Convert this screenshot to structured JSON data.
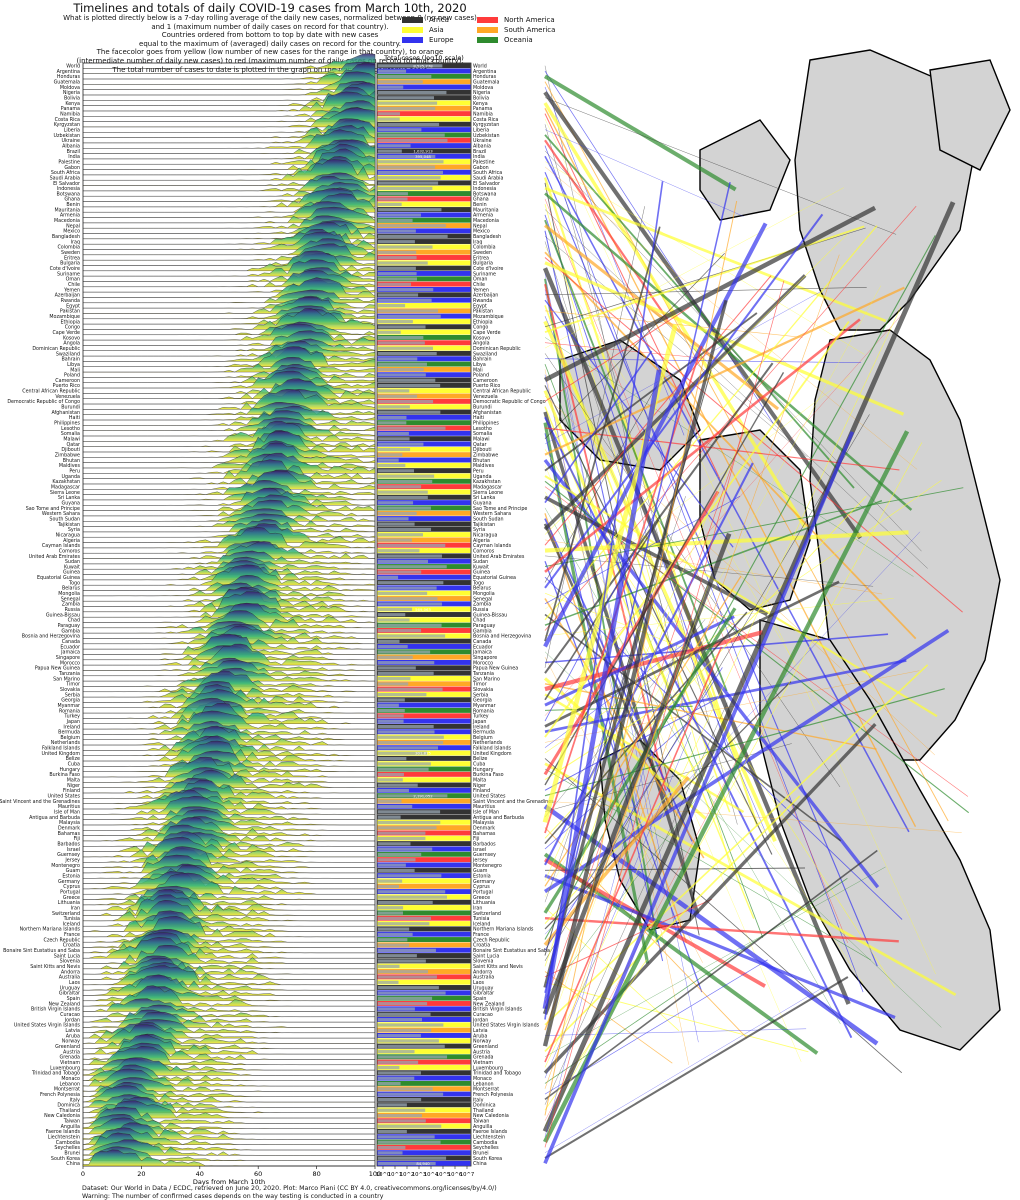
{
  "title": "Timelines and totals of daily COVID-19 cases from March 10th, 2020",
  "subtitle_lines": [
    "What is plotted directly below is a 7-day rolling average of the daily new cases, normalized between 0 (no new cases)",
    "and 1 (maximum number of daily cases on record for that country).",
    "Countries ordered from bottom to top by date with new cases",
    "equal to the maximum of (averaged) daily cases on record for the country.",
    "The facecolor goes from yellow (low number of new cases for the range in that country), to orange",
    "(intermediate number of daily new cases) to red (maximum number of daily cases on record for that country).",
    "The total number of cases to date is plotted in the graph on the right, in logarithmic scale"
  ],
  "legend": [
    {
      "label": "Africa",
      "color": "#333333"
    },
    {
      "label": "North America",
      "color": "#ff3b3b"
    },
    {
      "label": "Asia",
      "color": "#ffff33"
    },
    {
      "label": "South America",
      "color": "#ffa826"
    },
    {
      "label": "Europe",
      "color": "#3333ee"
    },
    {
      "label": "Oceania",
      "color": "#2e8b2e"
    }
  ],
  "footer": [
    "Dataset: Our World in Data / ECDC, retrieved on June 20, 2020. Plot: Marco Piani (CC BY 4.0, creativecommons.org/licenses/by/4.0/)",
    "Warning: The number of confirmed cases depends on the way testing is conducted in a country"
  ],
  "chart_data": [
    {
      "type": "area",
      "xlabel": "Days from March 10th",
      "xlim": [
        0,
        100
      ],
      "x_ticks": [
        0,
        20,
        40,
        60,
        80,
        100
      ],
      "categories": [
        "World",
        "Argentina",
        "Honduras",
        "Guatemala",
        "Moldova",
        "Nigeria",
        "Bolivia",
        "Kenya",
        "Panama",
        "Namibia",
        "Costa Rica",
        "Kyrgyzstan",
        "Liberia",
        "Uzbekistan",
        "Ukraine",
        "Albania",
        "Brazil",
        "India",
        "Palestine",
        "Gabon",
        "South Africa",
        "Saudi Arabia",
        "El Salvador",
        "Indonesia",
        "Botswana",
        "Ghana",
        "Benin",
        "Mauritania",
        "Armenia",
        "Macedonia",
        "Nepal",
        "Mexico",
        "Bangladesh",
        "Iraq",
        "Colombia",
        "Sweden",
        "Eritrea",
        "Bulgaria",
        "Cote d'Ivoire",
        "Suriname",
        "Oman",
        "Chile",
        "Yemen",
        "Azerbaijan",
        "Rwanda",
        "Egypt",
        "Pakistan",
        "Mozambique",
        "Ethiopia",
        "Congo",
        "Cape Verde",
        "Kosovo",
        "Angola",
        "Dominican Republic",
        "Swaziland",
        "Bahrain",
        "Libya",
        "Mali",
        "Poland",
        "Cameroon",
        "Puerto Rico",
        "Central African Republic",
        "Venezuela",
        "Democratic Republic of Congo",
        "Burundi",
        "Afghanistan",
        "Haiti",
        "Philippines",
        "Lesotho",
        "Somalia",
        "Malawi",
        "Qatar",
        "Djibouti",
        "Zimbabwe",
        "Bhutan",
        "Maldives",
        "Peru",
        "Uganda",
        "Kazakhstan",
        "Madagascar",
        "Sierra Leone",
        "Sri Lanka",
        "Guyana",
        "Sao Tome and Principe",
        "Western Sahara",
        "South Sudan",
        "Tajikistan",
        "Syria",
        "Nicaragua",
        "Algeria",
        "Cayman Islands",
        "Comoros",
        "United Arab Emirates",
        "Sudan",
        "Kuwait",
        "Guinea",
        "Equatorial Guinea",
        "Togo",
        "Belarus",
        "Mongolia",
        "Senegal",
        "Zambia",
        "Russia",
        "Guinea-Bissau",
        "Chad",
        "Paraguay",
        "Gambia",
        "Bosnia and Herzegovina",
        "Canada",
        "Ecuador",
        "Jamaica",
        "Singapore",
        "Morocco",
        "Papua New Guinea",
        "Tanzania",
        "San Marino",
        "Timor",
        "Slovakia",
        "Serbia",
        "Georgia",
        "Myanmar",
        "Romania",
        "Turkey",
        "Japan",
        "Ireland",
        "Bermuda",
        "Belgium",
        "Netherlands",
        "Falkland Islands",
        "United Kingdom",
        "Belize",
        "Cuba",
        "Hungary",
        "Burkina Faso",
        "Malta",
        "Niger",
        "Finland",
        "United States",
        "Saint Vincent and the Grenadines",
        "Mauritius",
        "Isle of Man",
        "Antigua and Barbuda",
        "Malaysia",
        "Denmark",
        "Bahamas",
        "Fiji",
        "Barbados",
        "Israel",
        "Guernsey",
        "Jersey",
        "Montenegro",
        "Guam",
        "Estonia",
        "Germany",
        "Cyprus",
        "Portugal",
        "Greece",
        "Lithuania",
        "Iran",
        "Switzerland",
        "Tunisia",
        "Iceland",
        "Northern Mariana Islands",
        "France",
        "Czech Republic",
        "Croatia",
        "Bonaire Sint Eustatius and Saba",
        "Saint Lucia",
        "Slovenia",
        "Saint Kitts and Nevis",
        "Andorra",
        "Australia",
        "Laos",
        "Uruguay",
        "Gibraltar",
        "Spain",
        "New Zealand",
        "British Virgin Islands",
        "Curacao",
        "Jordan",
        "United States Virgin Islands",
        "Latvia",
        "Aruba",
        "Norway",
        "Greenland",
        "Austria",
        "Grenada",
        "Vietnam",
        "Luxembourg",
        "Trinidad and Tobago",
        "Monaco",
        "Lebanon",
        "Montserrat",
        "French Polynesia",
        "Italy",
        "Dominica",
        "Thailand",
        "New Caledonia",
        "Taiwan",
        "Anguilla",
        "Faeroe Islands",
        "Liechtenstein",
        "Cambodia",
        "Seychelles",
        "Brunei",
        "South Korea",
        "China"
      ],
      "series_note": "7-day rolling average, normalized 0-1 per country"
    },
    {
      "type": "bar",
      "title": "Total cases (log10 scale)",
      "x_scale": "log",
      "x_ticks": [
        "10^0",
        "10^1",
        "10^2",
        "10^3",
        "10^4",
        "10^5",
        "10^6",
        "10^7"
      ],
      "labeled_values": {
        "World": "8,525,778",
        "Brazil": "1,032,913",
        "India": "395,048",
        "Russia": "569,063",
        "United States": "2,191,052",
        "United Kingdom": "301,815",
        "China": "84,940"
      }
    },
    {
      "type": "map",
      "regions": [
        "North America",
        "South America",
        "Europe",
        "Africa",
        "Asia",
        "Oceania"
      ],
      "note": "Connector lines from country rows to country locations on a rotated world map, colored by continent"
    }
  ]
}
